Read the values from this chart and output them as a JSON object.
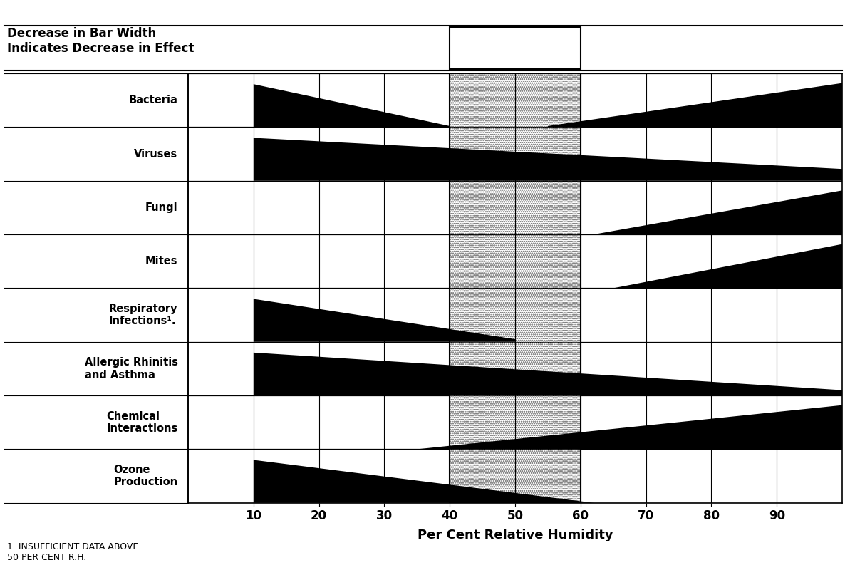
{
  "title_left": "Decrease in Bar Width\nIndicates Decrease in Effect",
  "optimum_zone": [
    40,
    60
  ],
  "x_min": 0,
  "x_max": 100,
  "xlabel": "Per Cent Relative Humidity",
  "footnote1": "1. INSUFFICIENT DATA ABOVE",
  "footnote2": "50 PER CENT R.H.",
  "x_ticks": [
    10,
    20,
    30,
    40,
    50,
    60,
    70,
    80,
    90
  ],
  "categories": [
    "Bacteria",
    "Viruses",
    "Fungi",
    "Mites",
    "Respiratory\nInfections¹.",
    "Allergic Rhinitis\nand Asthma",
    "Chemical\nInteractions",
    "Ozone\nProduction"
  ],
  "bg_color": "#ffffff",
  "bar_color": "#000000",
  "category_bands": [
    [
      {
        "x": [
          10,
          40,
          40,
          10
        ],
        "y": [
          0.8,
          0.02,
          0.0,
          0.0
        ]
      },
      {
        "x": [
          55,
          100,
          100,
          55
        ],
        "y": [
          0.02,
          0.82,
          0.0,
          0.0
        ]
      }
    ],
    [
      {
        "x": [
          10,
          100,
          100,
          10
        ],
        "y": [
          0.8,
          0.22,
          0.0,
          0.0
        ]
      }
    ],
    [
      {
        "x": [
          62,
          100,
          100,
          62
        ],
        "y": [
          0.0,
          0.82,
          0.0,
          0.0
        ]
      }
    ],
    [
      {
        "x": [
          65,
          100,
          100,
          65
        ],
        "y": [
          0.0,
          0.82,
          0.0,
          0.0
        ]
      }
    ],
    [
      {
        "x": [
          10,
          50,
          50,
          10
        ],
        "y": [
          0.8,
          0.05,
          0.0,
          0.0
        ]
      }
    ],
    [
      {
        "x": [
          10,
          100,
          100,
          10
        ],
        "y": [
          0.8,
          0.1,
          0.0,
          0.0
        ]
      }
    ],
    [
      {
        "x": [
          35,
          100,
          100,
          35
        ],
        "y": [
          0.0,
          0.82,
          0.0,
          0.0
        ]
      }
    ],
    [
      {
        "x": [
          10,
          62,
          62,
          10
        ],
        "y": [
          0.8,
          0.0,
          0.0,
          0.0
        ]
      }
    ]
  ]
}
